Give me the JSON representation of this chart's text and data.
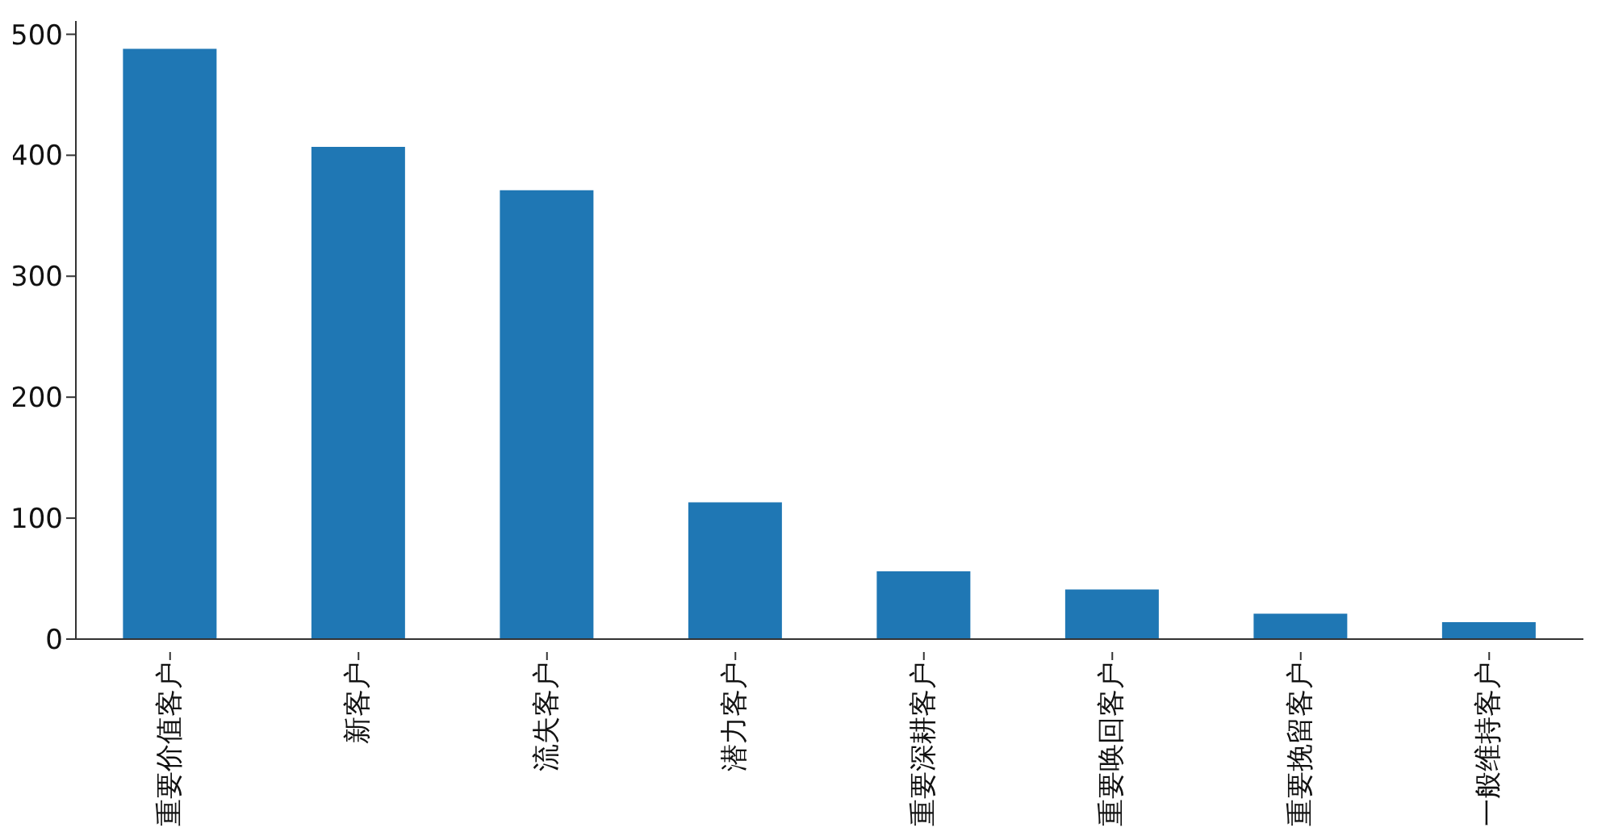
{
  "chart_data": {
    "type": "bar",
    "categories": [
      "重要价值客户",
      "新客户",
      "流失客户",
      "潜力客户",
      "重要深耕客户",
      "重要唤回客户",
      "重要挽留客户",
      "一般维持客户"
    ],
    "values": [
      488,
      407,
      371,
      113,
      56,
      41,
      21,
      14
    ],
    "color": "#1f77b4",
    "ylim": [
      0,
      511
    ],
    "yticks": [
      0,
      100,
      200,
      300,
      400,
      500
    ],
    "grid": false,
    "legend": false
  }
}
